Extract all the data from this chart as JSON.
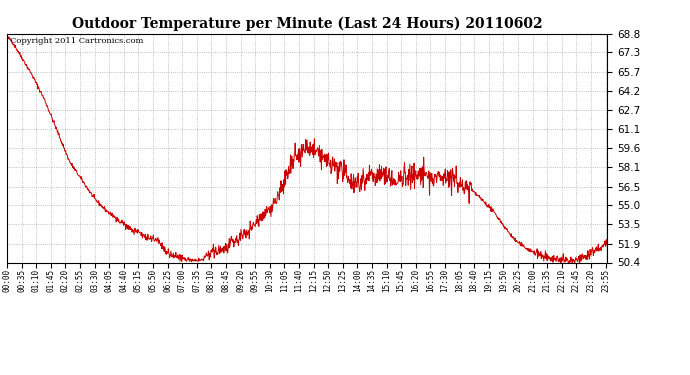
{
  "title": "Outdoor Temperature per Minute (Last 24 Hours) 20110602",
  "copyright_text": "Copyright 2011 Cartronics.com",
  "line_color": "#cc0000",
  "background_color": "#ffffff",
  "grid_color": "#aaaaaa",
  "ylim": [
    50.4,
    68.8
  ],
  "yticks": [
    50.4,
    51.9,
    53.5,
    55.0,
    56.5,
    58.1,
    59.6,
    61.1,
    62.7,
    64.2,
    65.7,
    67.3,
    68.8
  ],
  "x_tick_labels": [
    "00:00",
    "00:35",
    "01:10",
    "01:45",
    "02:20",
    "02:55",
    "03:30",
    "04:05",
    "04:40",
    "05:15",
    "05:50",
    "06:25",
    "07:00",
    "07:35",
    "08:10",
    "08:45",
    "09:20",
    "09:55",
    "10:30",
    "11:05",
    "11:40",
    "12:15",
    "12:50",
    "13:25",
    "14:00",
    "14:35",
    "15:10",
    "15:45",
    "16:20",
    "16:55",
    "17:30",
    "18:05",
    "18:40",
    "19:15",
    "19:50",
    "20:25",
    "21:00",
    "21:35",
    "22:10",
    "22:45",
    "23:20",
    "23:55"
  ],
  "n_points": 1440,
  "seed": 42,
  "figsize": [
    6.9,
    3.75
  ],
  "dpi": 100,
  "cp_hours": [
    0,
    0.17,
    0.5,
    1.0,
    1.5,
    2.0,
    2.5,
    3.0,
    3.5,
    4.0,
    4.33,
    4.67,
    5.0,
    5.25,
    5.5,
    6.0,
    6.25,
    6.5,
    6.75,
    7.0,
    7.25,
    7.5,
    7.75,
    8.0,
    8.25,
    8.5,
    8.75,
    9.0,
    9.25,
    9.5,
    9.75,
    10.0,
    10.25,
    10.5,
    10.75,
    11.0,
    11.17,
    11.33,
    11.5,
    11.67,
    11.75,
    12.0,
    12.25,
    12.5,
    12.75,
    13.0,
    13.25,
    13.5,
    13.75,
    14.0,
    14.25,
    14.5,
    14.75,
    15.0,
    15.25,
    15.5,
    15.75,
    16.0,
    16.25,
    16.5,
    16.75,
    17.0,
    17.25,
    17.5,
    17.75,
    18.0,
    18.25,
    18.5,
    18.75,
    19.0,
    19.25,
    19.5,
    19.75,
    20.0,
    20.25,
    20.5,
    21.0,
    21.25,
    21.5,
    21.75,
    22.0,
    22.25,
    22.5,
    23.0,
    23.5,
    23.92
  ],
  "cp_temps": [
    68.5,
    68.3,
    67.2,
    65.5,
    63.5,
    61.0,
    58.5,
    57.0,
    55.5,
    54.5,
    54.0,
    53.5,
    53.0,
    52.8,
    52.5,
    52.2,
    51.5,
    51.0,
    50.9,
    50.7,
    50.65,
    50.6,
    50.6,
    51.0,
    51.2,
    51.4,
    51.6,
    52.0,
    52.3,
    52.8,
    53.2,
    53.8,
    54.3,
    54.8,
    55.5,
    56.5,
    57.5,
    58.2,
    58.8,
    59.0,
    59.5,
    59.6,
    59.4,
    59.0,
    58.5,
    58.2,
    57.8,
    57.5,
    57.0,
    56.8,
    57.2,
    57.5,
    57.3,
    57.5,
    57.3,
    56.8,
    57.2,
    57.5,
    57.2,
    57.5,
    57.3,
    57.0,
    57.3,
    57.5,
    57.2,
    56.8,
    56.5,
    56.2,
    55.8,
    55.3,
    54.8,
    54.2,
    53.5,
    52.8,
    52.2,
    51.8,
    51.2,
    51.0,
    50.9,
    50.7,
    50.6,
    50.5,
    50.5,
    50.8,
    51.5,
    52.0
  ]
}
